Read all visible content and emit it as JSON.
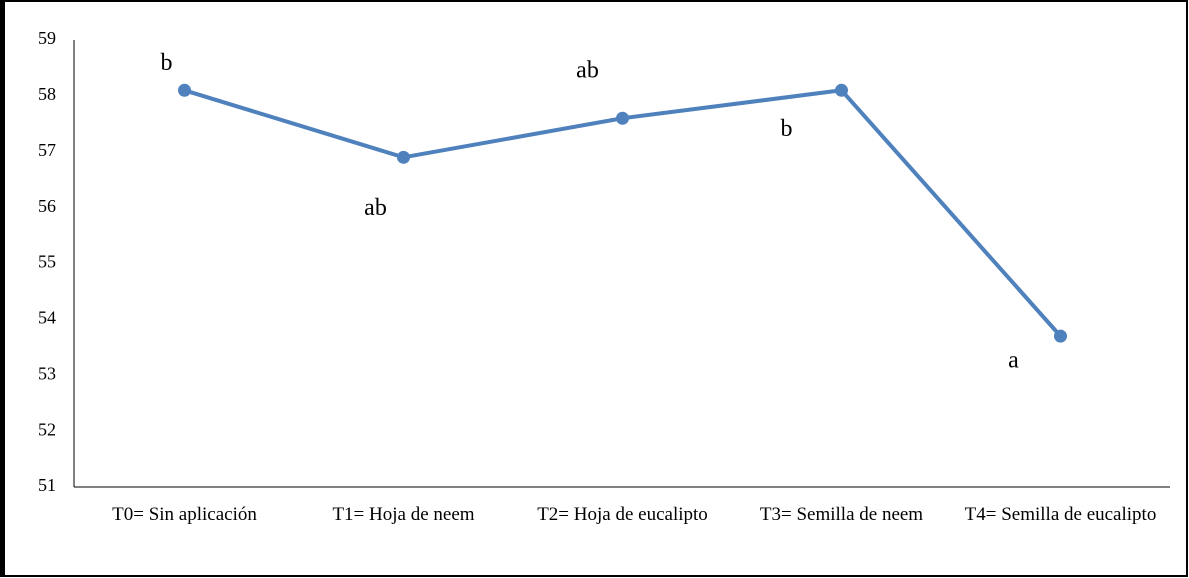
{
  "chart_data": {
    "type": "line",
    "categories": [
      "T0= Sin aplicación",
      "T1= Hoja de neem",
      "T2= Hoja de eucalipto",
      "T3= Semilla de neem",
      "T4= Semilla de eucalipto"
    ],
    "series": [
      {
        "color": "#4f81bd",
        "values": [
          58.1,
          56.9,
          57.6,
          58.1,
          53.7
        ]
      }
    ],
    "annotations": [
      "b",
      "ab",
      "ab",
      "b",
      "a"
    ],
    "ylim": [
      51,
      59
    ],
    "yticks": [
      51,
      52,
      53,
      54,
      55,
      56,
      57,
      58,
      59
    ],
    "grid": false
  }
}
